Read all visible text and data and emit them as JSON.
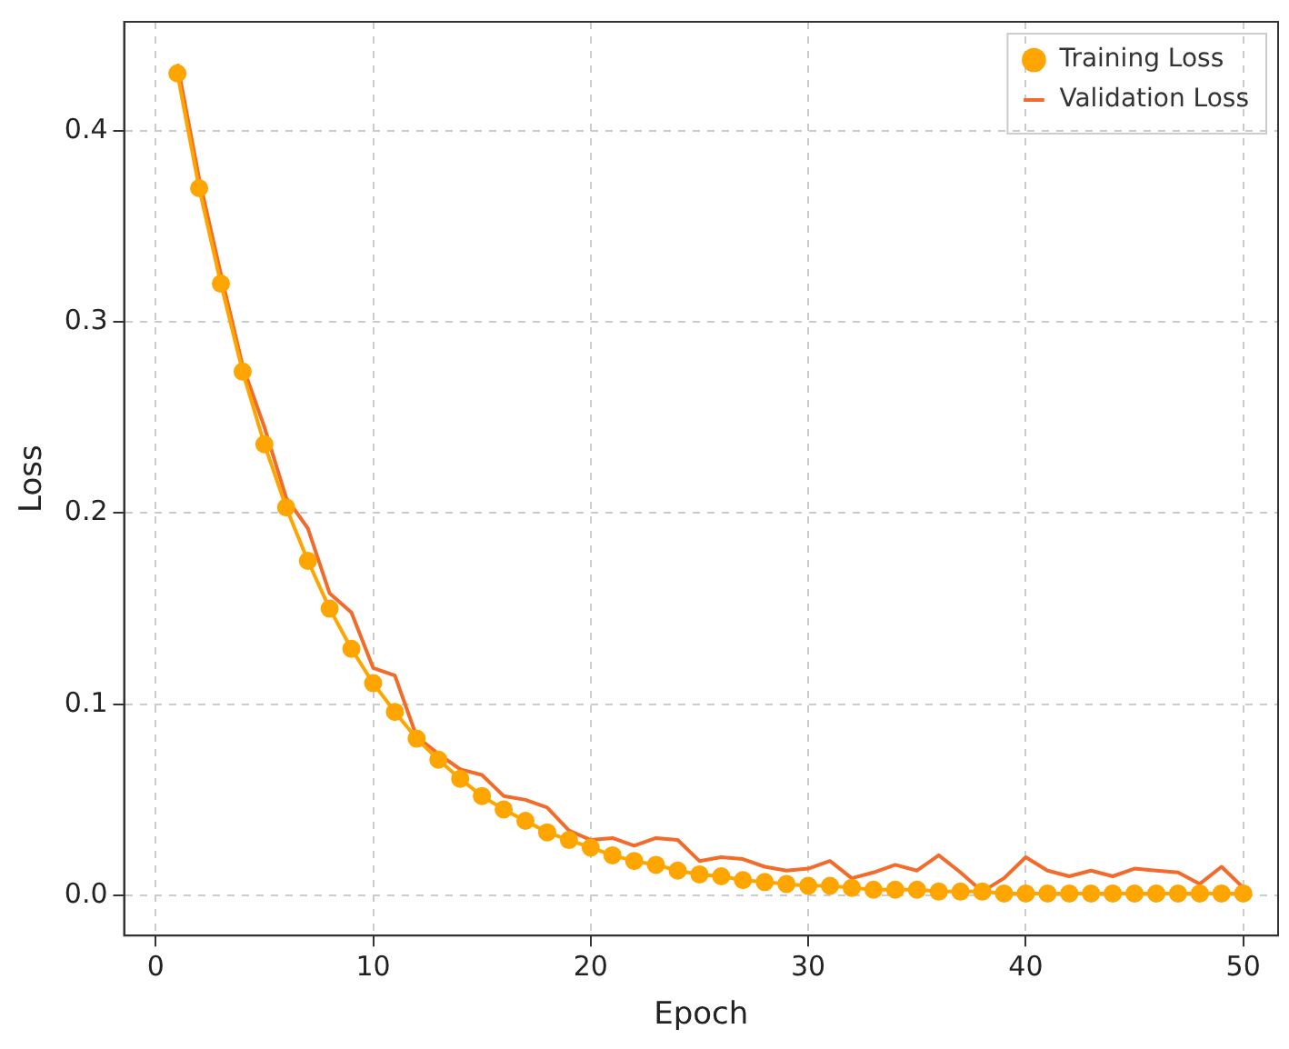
{
  "chart_data": {
    "type": "line",
    "xlabel": "Epoch",
    "ylabel": "Loss",
    "x": [
      1,
      2,
      3,
      4,
      5,
      6,
      7,
      8,
      9,
      10,
      11,
      12,
      13,
      14,
      15,
      16,
      17,
      18,
      19,
      20,
      21,
      22,
      23,
      24,
      25,
      26,
      27,
      28,
      29,
      30,
      31,
      32,
      33,
      34,
      35,
      36,
      37,
      38,
      39,
      40,
      41,
      42,
      43,
      44,
      45,
      46,
      47,
      48,
      49,
      50
    ],
    "series": [
      {
        "name": "Training Loss",
        "color": "#ffa500",
        "marker": "circle",
        "values": [
          0.43,
          0.37,
          0.32,
          0.274,
          0.236,
          0.203,
          0.175,
          0.15,
          0.129,
          0.111,
          0.096,
          0.082,
          0.071,
          0.061,
          0.052,
          0.045,
          0.039,
          0.033,
          0.029,
          0.025,
          0.021,
          0.018,
          0.016,
          0.013,
          0.011,
          0.01,
          0.008,
          0.007,
          0.006,
          0.005,
          0.005,
          0.004,
          0.003,
          0.003,
          0.003,
          0.002,
          0.002,
          0.002,
          0.001,
          0.001,
          0.001,
          0.001,
          0.001,
          0.001,
          0.001,
          0.001,
          0.001,
          0.001,
          0.001,
          0.001
        ]
      },
      {
        "name": "Validation Loss",
        "color": "#f26b2a",
        "marker": "none",
        "values": [
          0.435,
          0.375,
          0.325,
          0.277,
          0.245,
          0.208,
          0.192,
          0.158,
          0.148,
          0.119,
          0.115,
          0.083,
          0.074,
          0.066,
          0.063,
          0.052,
          0.05,
          0.046,
          0.034,
          0.029,
          0.03,
          0.026,
          0.03,
          0.029,
          0.018,
          0.02,
          0.019,
          0.015,
          0.013,
          0.014,
          0.018,
          0.009,
          0.012,
          0.016,
          0.013,
          0.021,
          0.012,
          0.002,
          0.009,
          0.02,
          0.013,
          0.01,
          0.013,
          0.01,
          0.014,
          0.013,
          0.012,
          0.006,
          0.015,
          0.004
        ]
      }
    ],
    "xlim": [
      -1.45,
      51.6
    ],
    "xticks": [
      0,
      10,
      20,
      30,
      40,
      50
    ],
    "ylim": [
      -0.021,
      0.457
    ],
    "yticks": [
      {
        "value": 0,
        "label": "0.0"
      },
      0.1,
      0.2,
      0.3,
      0.4
    ],
    "grid": true,
    "legend": "top right",
    "line_style": "solid"
  }
}
